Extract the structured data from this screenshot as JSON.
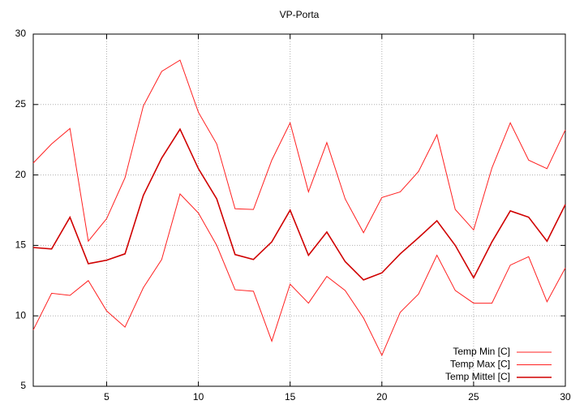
{
  "chart_data": {
    "type": "line",
    "title": "VP-Porta",
    "x": [
      1,
      2,
      3,
      4,
      5,
      6,
      7,
      8,
      9,
      10,
      11,
      12,
      13,
      14,
      15,
      16,
      17,
      18,
      19,
      20,
      21,
      22,
      23,
      24,
      25,
      26,
      27,
      28,
      29,
      30
    ],
    "xlim": [
      1,
      30
    ],
    "xticks": [
      5,
      10,
      15,
      20,
      25,
      30
    ],
    "ylim": [
      5,
      30
    ],
    "yticks": [
      5,
      10,
      15,
      20,
      25,
      30
    ],
    "grid": true,
    "legend": "bottom-right",
    "series": [
      {
        "name": "Temp Min [C]",
        "color": "#ff2020",
        "values": [
          9.0,
          11.6,
          11.45,
          12.5,
          10.35,
          9.2,
          12.0,
          14.0,
          18.65,
          17.3,
          15.0,
          11.85,
          11.75,
          8.2,
          12.25,
          10.9,
          12.8,
          11.8,
          9.85,
          7.2,
          10.25,
          11.55,
          14.3,
          11.8,
          10.9,
          10.9,
          13.6,
          14.2,
          11.0,
          13.4
        ]
      },
      {
        "name": "Temp Max [C]",
        "color": "#ff2020",
        "values": [
          20.85,
          22.2,
          23.3,
          15.3,
          16.9,
          19.8,
          24.9,
          27.35,
          28.15,
          24.45,
          22.2,
          17.6,
          17.55,
          21.05,
          23.7,
          18.8,
          22.3,
          18.3,
          15.9,
          18.4,
          18.8,
          20.25,
          22.85,
          17.55,
          16.1,
          20.5,
          23.7,
          21.05,
          20.45,
          23.2
        ]
      },
      {
        "name": "Temp Mittel [C]",
        "color": "#d00000",
        "values": [
          14.85,
          14.75,
          17.0,
          13.7,
          13.95,
          14.4,
          18.55,
          21.2,
          23.25,
          20.45,
          18.3,
          14.35,
          14.0,
          15.25,
          17.5,
          14.3,
          15.95,
          13.85,
          12.55,
          13.05,
          14.4,
          15.55,
          16.75,
          15.0,
          12.7,
          15.25,
          17.45,
          17.0,
          15.3,
          17.9
        ]
      }
    ]
  }
}
